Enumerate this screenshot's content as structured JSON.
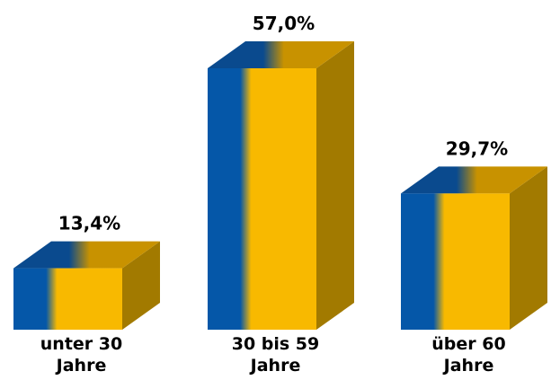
{
  "chart_data": {
    "type": "bar",
    "categories": [
      [
        "unter 30",
        "Jahre"
      ],
      [
        "30 bis 59",
        "Jahre"
      ],
      [
        "über 60",
        "Jahre"
      ]
    ],
    "values": [
      13.4,
      57.0,
      29.7
    ],
    "value_labels": [
      "13,4%",
      "57,0%",
      "29,7%"
    ],
    "title": "",
    "xlabel": "",
    "ylabel": "",
    "ylim": [
      0,
      57.0
    ],
    "grid": false,
    "legend": "none",
    "colors": {
      "blue": "#0557A8",
      "blue_top": "#0A4A8E",
      "yellow": "#F8B900",
      "yellow_top": "#C89200",
      "side": "#A27A00"
    }
  }
}
